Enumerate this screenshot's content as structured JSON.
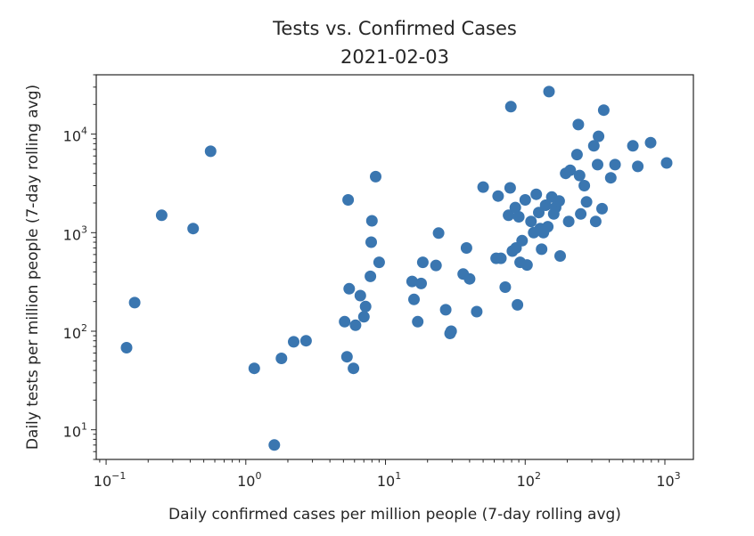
{
  "chart_data": {
    "type": "scatter",
    "title": "Tests vs. Confirmed Cases",
    "subtitle": "2021-02-03",
    "xlabel": "Daily confirmed cases per million people (7-day rolling avg)",
    "ylabel": "Daily tests per million people (7-day rolling avg)",
    "xscale": "log",
    "yscale": "log",
    "xlim": [
      0.085,
      1600
    ],
    "ylim": [
      5,
      40000
    ],
    "grid": false,
    "marker_color": "#3a76b0",
    "x_ticks": [
      {
        "value": 0.1,
        "base": "10",
        "exp": "−1"
      },
      {
        "value": 1,
        "base": "10",
        "exp": "0"
      },
      {
        "value": 10,
        "base": "10",
        "exp": "1"
      },
      {
        "value": 100,
        "base": "10",
        "exp": "2"
      },
      {
        "value": 1000,
        "base": "10",
        "exp": "3"
      }
    ],
    "y_ticks": [
      {
        "value": 10,
        "base": "10",
        "exp": "1"
      },
      {
        "value": 100,
        "base": "10",
        "exp": "2"
      },
      {
        "value": 1000,
        "base": "10",
        "exp": "3"
      },
      {
        "value": 10000,
        "base": "10",
        "exp": "4"
      }
    ],
    "points": [
      {
        "x": 0.14,
        "y": 68
      },
      {
        "x": 0.16,
        "y": 195
      },
      {
        "x": 0.25,
        "y": 1500
      },
      {
        "x": 0.42,
        "y": 1100
      },
      {
        "x": 0.56,
        "y": 6700
      },
      {
        "x": 1.15,
        "y": 42
      },
      {
        "x": 1.6,
        "y": 7
      },
      {
        "x": 1.8,
        "y": 53
      },
      {
        "x": 2.2,
        "y": 78
      },
      {
        "x": 2.7,
        "y": 80
      },
      {
        "x": 5.1,
        "y": 125
      },
      {
        "x": 5.3,
        "y": 55
      },
      {
        "x": 5.4,
        "y": 2150
      },
      {
        "x": 5.5,
        "y": 270
      },
      {
        "x": 5.9,
        "y": 42
      },
      {
        "x": 6.1,
        "y": 115
      },
      {
        "x": 6.6,
        "y": 230
      },
      {
        "x": 7.0,
        "y": 140
      },
      {
        "x": 7.2,
        "y": 178
      },
      {
        "x": 7.8,
        "y": 360
      },
      {
        "x": 7.9,
        "y": 800
      },
      {
        "x": 8.0,
        "y": 1320
      },
      {
        "x": 8.5,
        "y": 3700
      },
      {
        "x": 9.0,
        "y": 500
      },
      {
        "x": 15.5,
        "y": 320
      },
      {
        "x": 16.0,
        "y": 210
      },
      {
        "x": 17.0,
        "y": 125
      },
      {
        "x": 18.0,
        "y": 305
      },
      {
        "x": 18.5,
        "y": 500
      },
      {
        "x": 23.0,
        "y": 465
      },
      {
        "x": 24.0,
        "y": 990
      },
      {
        "x": 27.0,
        "y": 165
      },
      {
        "x": 29.0,
        "y": 95
      },
      {
        "x": 29.5,
        "y": 100
      },
      {
        "x": 36.0,
        "y": 380
      },
      {
        "x": 38.0,
        "y": 700
      },
      {
        "x": 40.0,
        "y": 340
      },
      {
        "x": 45.0,
        "y": 158
      },
      {
        "x": 50.0,
        "y": 2900
      },
      {
        "x": 62.0,
        "y": 550
      },
      {
        "x": 64.0,
        "y": 2350
      },
      {
        "x": 67.0,
        "y": 550
      },
      {
        "x": 72.0,
        "y": 280
      },
      {
        "x": 76.0,
        "y": 1500
      },
      {
        "x": 78.0,
        "y": 2850
      },
      {
        "x": 79.0,
        "y": 19000
      },
      {
        "x": 81.0,
        "y": 650
      },
      {
        "x": 85.0,
        "y": 1800
      },
      {
        "x": 86.0,
        "y": 700
      },
      {
        "x": 88.0,
        "y": 185
      },
      {
        "x": 90.0,
        "y": 1450
      },
      {
        "x": 92.0,
        "y": 500
      },
      {
        "x": 95.0,
        "y": 830
      },
      {
        "x": 100.0,
        "y": 2150
      },
      {
        "x": 103.0,
        "y": 470
      },
      {
        "x": 110.0,
        "y": 1300
      },
      {
        "x": 115.0,
        "y": 1000
      },
      {
        "x": 120.0,
        "y": 2450
      },
      {
        "x": 125.0,
        "y": 1600
      },
      {
        "x": 128.0,
        "y": 1100
      },
      {
        "x": 131.0,
        "y": 680
      },
      {
        "x": 135.0,
        "y": 1000
      },
      {
        "x": 140.0,
        "y": 1900
      },
      {
        "x": 145.0,
        "y": 1150
      },
      {
        "x": 148.0,
        "y": 27000
      },
      {
        "x": 155.0,
        "y": 2300
      },
      {
        "x": 160.0,
        "y": 1550
      },
      {
        "x": 165.0,
        "y": 1800
      },
      {
        "x": 175.0,
        "y": 2100
      },
      {
        "x": 178.0,
        "y": 580
      },
      {
        "x": 195.0,
        "y": 4000
      },
      {
        "x": 205.0,
        "y": 1300
      },
      {
        "x": 210.0,
        "y": 4300
      },
      {
        "x": 235.0,
        "y": 6200
      },
      {
        "x": 240.0,
        "y": 12500
      },
      {
        "x": 245.0,
        "y": 3800
      },
      {
        "x": 250.0,
        "y": 1550
      },
      {
        "x": 265.0,
        "y": 3000
      },
      {
        "x": 275.0,
        "y": 2050
      },
      {
        "x": 310.0,
        "y": 7600
      },
      {
        "x": 320.0,
        "y": 1300
      },
      {
        "x": 330.0,
        "y": 4900
      },
      {
        "x": 335.0,
        "y": 9500
      },
      {
        "x": 355.0,
        "y": 1750
      },
      {
        "x": 365.0,
        "y": 17500
      },
      {
        "x": 410.0,
        "y": 3600
      },
      {
        "x": 440.0,
        "y": 4900
      },
      {
        "x": 590.0,
        "y": 7600
      },
      {
        "x": 640.0,
        "y": 4700
      },
      {
        "x": 790.0,
        "y": 8200
      },
      {
        "x": 1030.0,
        "y": 5100
      }
    ]
  }
}
